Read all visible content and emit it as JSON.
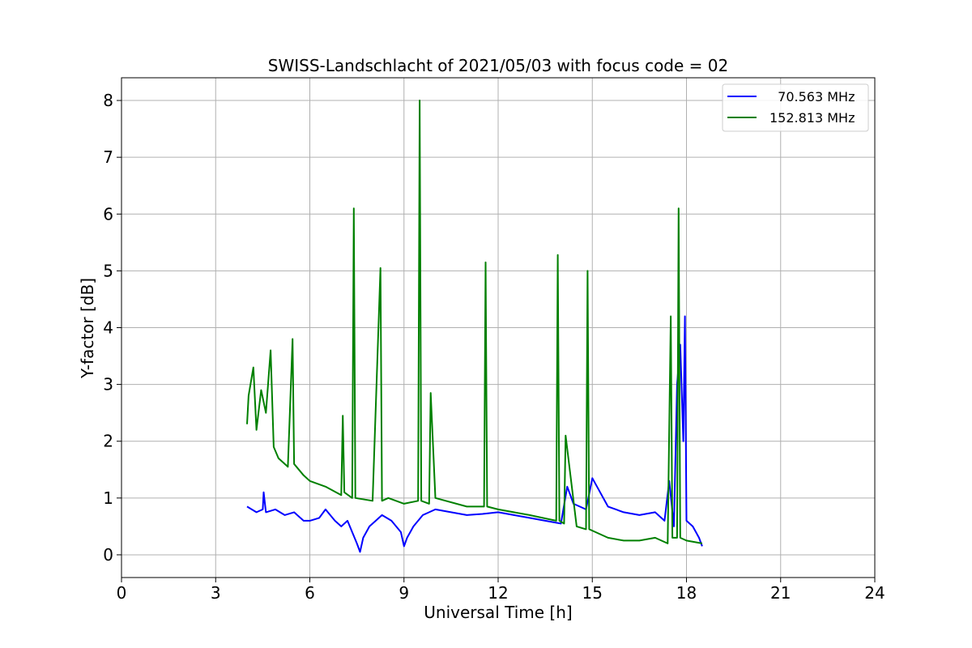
{
  "chart_data": {
    "type": "line",
    "title": "SWISS-Landschlacht of 2021/05/03 with focus code = 02",
    "xlabel": "Universal Time [h]",
    "ylabel": "Y-factor [dB]",
    "xlim": [
      0,
      24
    ],
    "ylim": [
      -0.4,
      8.4
    ],
    "xticks": [
      0,
      3,
      6,
      9,
      12,
      15,
      18,
      21,
      24
    ],
    "yticks": [
      0,
      1,
      2,
      3,
      4,
      5,
      6,
      7,
      8
    ],
    "grid": true,
    "legend_position": "top-right",
    "series": [
      {
        "name": "  70.563 MHz",
        "color": "#0000ff",
        "x": [
          4.0,
          4.3,
          4.5,
          4.53,
          4.6,
          4.9,
          5.2,
          5.5,
          5.8,
          6.0,
          6.3,
          6.5,
          6.8,
          7.0,
          7.2,
          7.35,
          7.5,
          7.6,
          7.7,
          7.9,
          8.1,
          8.3,
          8.6,
          8.9,
          9.0,
          9.1,
          9.3,
          9.6,
          9.8,
          10.0,
          10.5,
          11.0,
          11.5,
          12.0,
          12.5,
          13.0,
          13.5,
          14.0,
          14.2,
          14.4,
          14.8,
          15.0,
          15.5,
          16.0,
          16.5,
          17.0,
          17.3,
          17.45,
          17.6,
          17.7,
          17.8,
          17.9,
          17.95,
          18.0,
          18.2,
          18.4,
          18.5
        ],
        "y": [
          0.85,
          0.75,
          0.8,
          1.1,
          0.75,
          0.8,
          0.7,
          0.75,
          0.6,
          0.6,
          0.65,
          0.8,
          0.6,
          0.5,
          0.6,
          0.4,
          0.2,
          0.05,
          0.3,
          0.5,
          0.6,
          0.7,
          0.6,
          0.4,
          0.15,
          0.3,
          0.5,
          0.7,
          0.75,
          0.8,
          0.75,
          0.7,
          0.72,
          0.75,
          0.7,
          0.65,
          0.6,
          0.55,
          1.2,
          0.9,
          0.8,
          1.35,
          0.85,
          0.75,
          0.7,
          0.75,
          0.6,
          1.3,
          0.5,
          3.0,
          3.7,
          2.0,
          4.2,
          0.6,
          0.5,
          0.3,
          0.15
        ]
      },
      {
        "name": "152.813 MHz",
        "color": "#008000",
        "x": [
          4.0,
          4.05,
          4.2,
          4.3,
          4.45,
          4.6,
          4.75,
          4.85,
          5.0,
          5.3,
          5.45,
          5.5,
          5.8,
          6.0,
          6.5,
          7.0,
          7.05,
          7.1,
          7.35,
          7.4,
          7.45,
          8.0,
          8.25,
          8.3,
          8.5,
          9.0,
          9.45,
          9.5,
          9.55,
          9.8,
          9.85,
          10.0,
          11.0,
          11.55,
          11.6,
          11.65,
          12.0,
          13.0,
          13.85,
          13.9,
          13.95,
          14.1,
          14.15,
          14.5,
          14.8,
          14.85,
          14.9,
          15.5,
          16.0,
          16.5,
          17.0,
          17.4,
          17.5,
          17.55,
          17.7,
          17.75,
          17.8,
          18.0,
          18.5
        ],
        "y": [
          2.3,
          2.8,
          3.3,
          2.2,
          2.9,
          2.5,
          3.6,
          1.9,
          1.7,
          1.55,
          3.8,
          1.6,
          1.4,
          1.3,
          1.2,
          1.05,
          2.45,
          1.1,
          1.0,
          6.1,
          1.0,
          0.95,
          5.05,
          0.95,
          1.0,
          0.9,
          0.95,
          8.0,
          0.95,
          0.9,
          2.85,
          1.0,
          0.85,
          0.85,
          5.15,
          0.85,
          0.8,
          0.7,
          0.6,
          5.28,
          0.6,
          0.55,
          2.1,
          0.5,
          0.45,
          5.0,
          0.45,
          0.3,
          0.25,
          0.25,
          0.3,
          0.2,
          4.2,
          0.3,
          0.3,
          6.1,
          0.3,
          0.25,
          0.2
        ]
      }
    ]
  }
}
